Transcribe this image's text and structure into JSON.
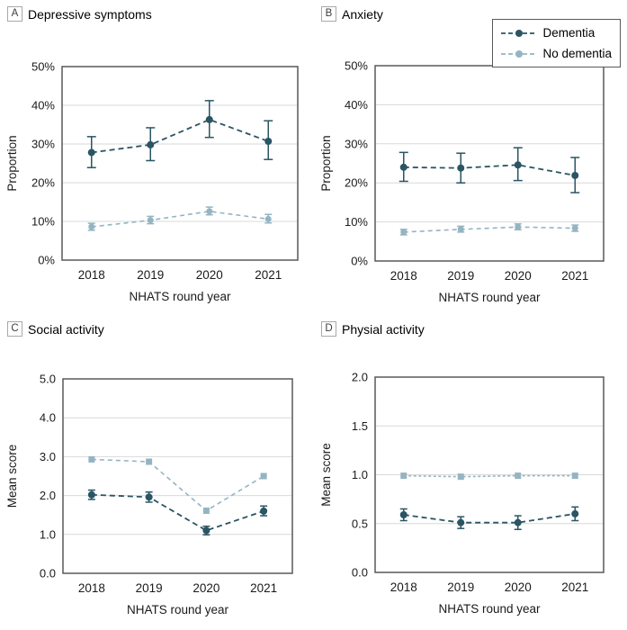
{
  "colors": {
    "dementia": "#2a5563",
    "no_dementia": "#94b4c2",
    "gridline": "#d9d9d9",
    "plot_border": "#595959",
    "text": "#1a1a1a"
  },
  "legend": {
    "items": [
      {
        "label": "Dementia",
        "color_key": "dementia"
      },
      {
        "label": "No dementia",
        "color_key": "no_dementia"
      }
    ]
  },
  "chart_data": [
    {
      "type": "line",
      "letter": "A",
      "title": "Depressive symptoms",
      "xlabel": "NHATS round year",
      "ylabel": "Proportion",
      "categories": [
        "2018",
        "2019",
        "2020",
        "2021"
      ],
      "ylim": [
        0,
        50
      ],
      "y_ticks": [
        {
          "v": 0,
          "label": "0%"
        },
        {
          "v": 10,
          "label": "10%"
        },
        {
          "v": 20,
          "label": "20%"
        },
        {
          "v": 30,
          "label": "30%"
        },
        {
          "v": 40,
          "label": "40%"
        },
        {
          "v": 50,
          "label": "50%"
        }
      ],
      "series": [
        {
          "key": "dementia",
          "name": "Dementia",
          "color_key": "dementia",
          "marker": "circle",
          "dash": "6 4",
          "line_width": 1.8,
          "cap": 5,
          "r": 4,
          "values": [
            27.8,
            29.8,
            36.3,
            30.7
          ],
          "ci_low": [
            23.9,
            25.7,
            31.7,
            26.0
          ],
          "ci_high": [
            31.9,
            34.2,
            41.2,
            36.0
          ]
        },
        {
          "key": "no-dementia",
          "name": "No dementia",
          "color_key": "no_dementia",
          "marker": "circle",
          "dash": "5 4",
          "line_width": 1.6,
          "cap": 4,
          "r": 3.5,
          "values": [
            8.6,
            10.3,
            12.6,
            10.6
          ],
          "ci_low": [
            7.7,
            9.4,
            11.7,
            9.6
          ],
          "ci_high": [
            9.5,
            11.3,
            13.7,
            11.8
          ]
        }
      ]
    },
    {
      "type": "line",
      "letter": "B",
      "title": "Anxiety",
      "xlabel": "NHATS round year",
      "ylabel": "Proportion",
      "categories": [
        "2018",
        "2019",
        "2020",
        "2021"
      ],
      "ylim": [
        0,
        50
      ],
      "y_ticks": [
        {
          "v": 0,
          "label": "0%"
        },
        {
          "v": 10,
          "label": "10%"
        },
        {
          "v": 20,
          "label": "20%"
        },
        {
          "v": 30,
          "label": "30%"
        },
        {
          "v": 40,
          "label": "40%"
        },
        {
          "v": 50,
          "label": "50%"
        }
      ],
      "series": [
        {
          "key": "dementia",
          "name": "Dementia",
          "color_key": "dementia",
          "marker": "circle",
          "dash": "6 4",
          "line_width": 1.8,
          "cap": 5,
          "r": 4,
          "values": [
            24.0,
            23.8,
            24.6,
            21.9
          ],
          "ci_low": [
            20.4,
            20.0,
            20.6,
            17.5
          ],
          "ci_high": [
            27.8,
            27.6,
            29.0,
            26.5
          ]
        },
        {
          "key": "no-dementia",
          "name": "No dementia",
          "color_key": "no_dementia",
          "marker": "circle",
          "dash": "5 4",
          "line_width": 1.6,
          "cap": 4,
          "r": 3.5,
          "values": [
            7.4,
            8.1,
            8.7,
            8.4
          ],
          "ci_low": [
            6.7,
            7.4,
            8.0,
            7.6
          ],
          "ci_high": [
            8.1,
            8.9,
            9.5,
            9.2
          ]
        }
      ]
    },
    {
      "type": "line",
      "letter": "C",
      "title": "Social activity",
      "xlabel": "NHATS round year",
      "ylabel": "Mean score",
      "categories": [
        "2018",
        "2019",
        "2020",
        "2021"
      ],
      "ylim": [
        0,
        5
      ],
      "y_ticks": [
        {
          "v": 0,
          "label": "0.0"
        },
        {
          "v": 1,
          "label": "1.0"
        },
        {
          "v": 2,
          "label": "2.0"
        },
        {
          "v": 3,
          "label": "3.0"
        },
        {
          "v": 4,
          "label": "4.0"
        },
        {
          "v": 5,
          "label": "5.0"
        }
      ],
      "series": [
        {
          "key": "dementia",
          "name": "Dementia",
          "color_key": "dementia",
          "marker": "circle",
          "dash": "6 4",
          "line_width": 1.8,
          "cap": 4,
          "r": 4,
          "values": [
            2.02,
            1.96,
            1.1,
            1.6
          ],
          "ci_low": [
            1.9,
            1.83,
            0.99,
            1.48
          ],
          "ci_high": [
            2.14,
            2.09,
            1.21,
            1.73
          ]
        },
        {
          "key": "no-dementia",
          "name": "No dementia",
          "color_key": "no_dementia",
          "marker": "square",
          "dash": "5 4",
          "line_width": 1.6,
          "cap": 3,
          "r": 3.5,
          "values": [
            2.93,
            2.87,
            1.61,
            2.5
          ],
          "ci_low": [
            2.89,
            2.83,
            1.55,
            2.46
          ],
          "ci_high": [
            2.97,
            2.91,
            1.67,
            2.54
          ]
        }
      ]
    },
    {
      "type": "line",
      "letter": "D",
      "title": "Physial activity",
      "xlabel": "NHATS round year",
      "ylabel": "Mean score",
      "categories": [
        "2018",
        "2019",
        "2020",
        "2021"
      ],
      "ylim": [
        0,
        2
      ],
      "y_ticks": [
        {
          "v": 0,
          "label": "0.0"
        },
        {
          "v": 0.5,
          "label": "0.5"
        },
        {
          "v": 1,
          "label": "1.0"
        },
        {
          "v": 1.5,
          "label": "1.5"
        },
        {
          "v": 2,
          "label": "2.0"
        }
      ],
      "series": [
        {
          "key": "dementia",
          "name": "Dementia",
          "color_key": "dementia",
          "marker": "circle",
          "dash": "6 4",
          "line_width": 1.8,
          "cap": 4,
          "r": 4,
          "values": [
            0.59,
            0.51,
            0.51,
            0.6
          ],
          "ci_low": [
            0.53,
            0.45,
            0.44,
            0.53
          ],
          "ci_high": [
            0.65,
            0.57,
            0.58,
            0.67
          ]
        },
        {
          "key": "no-dementia",
          "name": "No dementia",
          "color_key": "no_dementia",
          "marker": "square",
          "dash": "3 2.5",
          "line_width": 1.6,
          "cap": 3,
          "r": 3.5,
          "values": [
            0.99,
            0.98,
            0.99,
            0.99
          ],
          "ci_low": [
            0.97,
            0.96,
            0.97,
            0.97
          ],
          "ci_high": [
            1.01,
            1.0,
            1.01,
            1.01
          ]
        }
      ]
    }
  ]
}
